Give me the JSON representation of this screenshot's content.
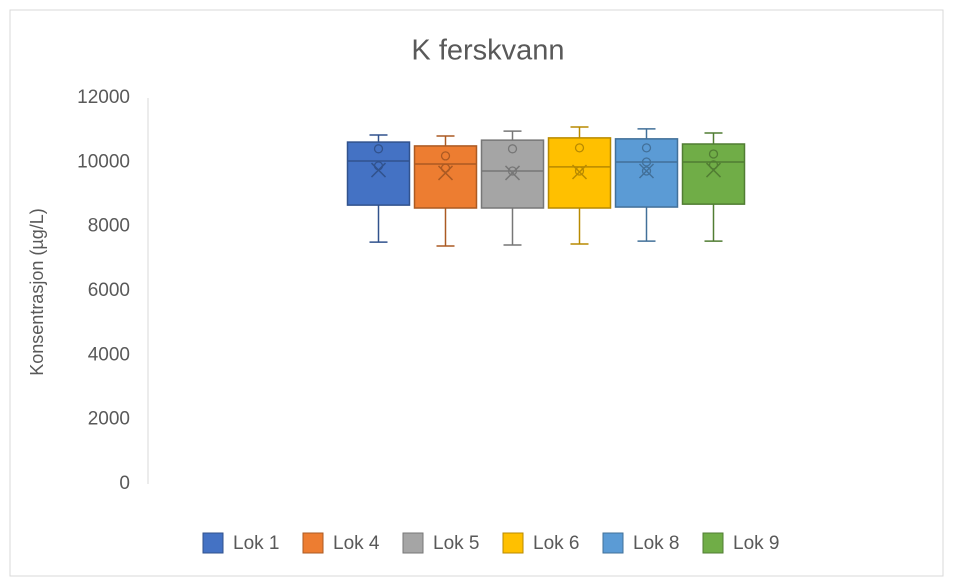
{
  "chart_data": {
    "type": "box",
    "title": "K ferskvann",
    "y_label": "Konsentrasjon (µg/L)",
    "ylim": [
      0,
      12000
    ],
    "yticks": [
      0,
      2000,
      4000,
      6000,
      8000,
      10000,
      12000
    ],
    "grid": false,
    "legend": "bottom",
    "series": [
      {
        "name": "Lok 1",
        "color": "#4472c4",
        "min": 7520,
        "q1": 8670,
        "median": 10040,
        "q3": 10630,
        "max": 10850,
        "mean": 9760,
        "points": [
          10420,
          9890
        ]
      },
      {
        "name": "Lok 4",
        "color": "#ed7d31",
        "min": 7400,
        "q1": 8580,
        "median": 9950,
        "q3": 10510,
        "max": 10820,
        "mean": 9670,
        "points": [
          10200,
          9820
        ]
      },
      {
        "name": "Lok 5",
        "color": "#a5a5a5",
        "min": 7430,
        "q1": 8580,
        "median": 9730,
        "q3": 10690,
        "max": 10970,
        "mean": 9670,
        "points": [
          10420,
          9730
        ]
      },
      {
        "name": "Lok 6",
        "color": "#ffc000",
        "min": 7460,
        "q1": 8580,
        "median": 9860,
        "q3": 10760,
        "max": 11100,
        "mean": 9700,
        "points": [
          10450,
          9730
        ]
      },
      {
        "name": "Lok 8",
        "color": "#5b9bd5",
        "min": 7550,
        "q1": 8610,
        "median": 10010,
        "q3": 10730,
        "max": 11040,
        "mean": 9730,
        "points": [
          10450,
          10010,
          9730
        ]
      },
      {
        "name": "Lok 9",
        "color": "#70ad47",
        "min": 7550,
        "q1": 8700,
        "median": 10010,
        "q3": 10570,
        "max": 10910,
        "mean": 9760,
        "points": [
          10260,
          9920
        ]
      }
    ]
  }
}
